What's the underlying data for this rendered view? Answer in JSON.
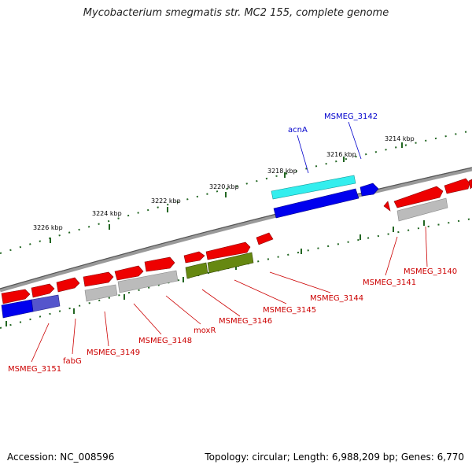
{
  "title": "Mycobacterium smegmatis str. MC2 155, complete genome",
  "footer": {
    "accession": "Accession: NC_008596",
    "summary": "Topology: circular; Length: 6,988,209 bp; Genes: 6,770"
  },
  "ticks": [
    "3214 kbp",
    "3216 kbp",
    "3218 kbp",
    "3220 kbp",
    "3222 kbp",
    "3224 kbp",
    "3226 kbp"
  ],
  "colors": {
    "red": "#ee0000",
    "blue": "#0000ee",
    "cyan": "#33eeee",
    "gray": "#bbbbbb",
    "olive": "#668811",
    "slate": "#5555cc",
    "backbone": "#888888",
    "tick": "#226622"
  },
  "labels": [
    {
      "text": "MSMEG_3142",
      "color": "blue"
    },
    {
      "text": "acnA",
      "color": "blue"
    },
    {
      "text": "MSMEG_3140",
      "color": "red"
    },
    {
      "text": "MSMEG_3141",
      "color": "red"
    },
    {
      "text": "MSMEG_3144",
      "color": "red"
    },
    {
      "text": "MSMEG_3145",
      "color": "red"
    },
    {
      "text": "MSMEG_3146",
      "color": "red"
    },
    {
      "text": "moxR",
      "color": "red"
    },
    {
      "text": "MSMEG_3148",
      "color": "red"
    },
    {
      "text": "MSMEG_3149",
      "color": "red"
    },
    {
      "text": "fabG",
      "color": "red"
    },
    {
      "text": "MSMEG_3151",
      "color": "red"
    }
  ]
}
